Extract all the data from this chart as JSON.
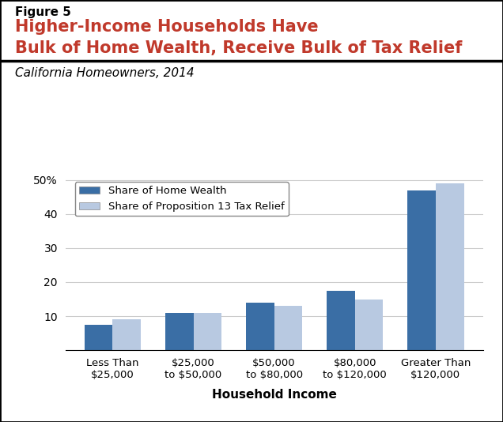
{
  "figure_label": "Figure 5",
  "title_line1": "Higher-Income Households Have",
  "title_line2": "Bulk of Home Wealth, Receive Bulk of Tax Relief",
  "subtitle": "California Homeowners, 2014",
  "xlabel": "Household Income",
  "categories": [
    "Less Than\n$25,000",
    "$25,000\nto $50,000",
    "$50,000\nto $80,000",
    "$80,000\nto $120,000",
    "Greater Than\n$120,000"
  ],
  "series1_label": "Share of Home Wealth",
  "series2_label": "Share of Proposition 13 Tax Relief",
  "series1_values": [
    7.5,
    11.0,
    14.0,
    17.5,
    47.0
  ],
  "series2_values": [
    9.0,
    11.0,
    13.0,
    15.0,
    49.0
  ],
  "series1_color": "#3A6EA5",
  "series2_color": "#B8C9E1",
  "ylim": [
    0,
    52
  ],
  "yticks": [
    0,
    10,
    20,
    30,
    40,
    50
  ],
  "ytick_labels": [
    "",
    "10",
    "20",
    "30",
    "40",
    "50%"
  ],
  "bar_width": 0.35,
  "background_color": "#FFFFFF",
  "border_color": "#000000",
  "title_color": "#C0392B",
  "figure_label_color": "#000000",
  "subtitle_color": "#000000",
  "grid_color": "#CCCCCC"
}
